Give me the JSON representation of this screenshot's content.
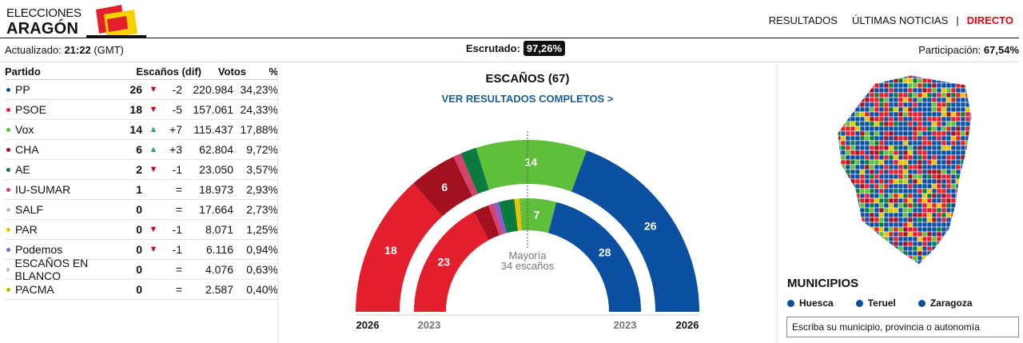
{
  "header": {
    "logo_top": "ELECCIONES",
    "logo_bottom": "ARAGÓN",
    "nav": [
      "RESULTADOS",
      "ÚLTIMAS NOTICIAS",
      "|",
      "DIRECTO"
    ]
  },
  "status": {
    "updated_label": "Actualizado:",
    "updated_time": "21:22",
    "updated_tz": "(GMT)",
    "counted_label": "Escrutado:",
    "counted_value": "97,26%",
    "turnout_label": "Participación:",
    "turnout_value": "67,54%"
  },
  "table": {
    "headers": [
      "Partido",
      "Escaños (dif)",
      "Votos",
      "%"
    ],
    "rows": [
      {
        "party": "PP",
        "color": "#0b4fa0",
        "seats": "26",
        "trend": "down",
        "diff": "-2",
        "votes": "220.984",
        "pct": "34,23%"
      },
      {
        "party": "PSOE",
        "color": "#e31e2d",
        "seats": "18",
        "trend": "down",
        "diff": "-5",
        "votes": "157.061",
        "pct": "24,33%"
      },
      {
        "party": "Vox",
        "color": "#5fbe3a",
        "seats": "14",
        "trend": "up",
        "diff": "+7",
        "votes": "115.437",
        "pct": "17,88%"
      },
      {
        "party": "CHA",
        "color": "#a3101f",
        "seats": "6",
        "trend": "up",
        "diff": "+3",
        "votes": "62.804",
        "pct": "9,72%"
      },
      {
        "party": "AE",
        "color": "#0a7a3e",
        "seats": "2",
        "trend": "down",
        "diff": "-1",
        "votes": "23.050",
        "pct": "3,57%"
      },
      {
        "party": "IU-SUMAR",
        "color": "#d4436b",
        "seats": "1",
        "trend": "",
        "diff": "=",
        "votes": "18.973",
        "pct": "2,93%"
      },
      {
        "party": "SALF",
        "color": "#bdbdbd",
        "seats": "0",
        "trend": "",
        "diff": "=",
        "votes": "17.664",
        "pct": "2,73%"
      },
      {
        "party": "PAR",
        "color": "#e8c400",
        "seats": "0",
        "trend": "down",
        "diff": "-1",
        "votes": "8.071",
        "pct": "1,25%"
      },
      {
        "party": "Podemos",
        "color": "#8e5bd1",
        "seats": "0",
        "trend": "down",
        "diff": "-1",
        "votes": "6.116",
        "pct": "0,94%"
      },
      {
        "party": "ESCAÑOS EN BLANCO",
        "color": "#bdbdbd",
        "seats": "0",
        "trend": "",
        "diff": "=",
        "votes": "4.076",
        "pct": "0,63%"
      },
      {
        "party": "PACMA",
        "color": "#9ac400",
        "seats": "0",
        "trend": "",
        "diff": "=",
        "votes": "2.587",
        "pct": "0,40%"
      }
    ]
  },
  "chart": {
    "title": "ESCAÑOS (67)",
    "link": "VER RESULTADOS COMPLETOS >",
    "majority_line1": "Mayoría",
    "majority_line2": "34 escaños",
    "year_now": "2026",
    "year_prev": "2023",
    "outer_seats": [
      {
        "party": "PSOE",
        "seats": 18,
        "color": "#e31e2d",
        "label": "18"
      },
      {
        "party": "CHA",
        "seats": 6,
        "color": "#a3101f",
        "label": "6"
      },
      {
        "party": "IU-SUMAR",
        "seats": 1,
        "color": "#d4436b",
        "label": ""
      },
      {
        "party": "AE",
        "seats": 2,
        "color": "#0a7a3e",
        "label": ""
      },
      {
        "party": "Vox",
        "seats": 14,
        "color": "#5fbe3a",
        "label": "14"
      },
      {
        "party": "PP",
        "seats": 26,
        "color": "#0b4fa0",
        "label": "26"
      }
    ],
    "inner_seats": [
      {
        "party": "PSOE",
        "seats": 23,
        "color": "#e31e2d",
        "label": "23"
      },
      {
        "party": "CHA",
        "seats": 3,
        "color": "#a3101f",
        "label": ""
      },
      {
        "party": "IU-SUMAR",
        "seats": 1,
        "color": "#d4436b",
        "label": ""
      },
      {
        "party": "Podemos",
        "seats": 1,
        "color": "#8e5bd1",
        "label": ""
      },
      {
        "party": "AE",
        "seats": 3,
        "color": "#0a7a3e",
        "label": ""
      },
      {
        "party": "PAR",
        "seats": 1,
        "color": "#e8c400",
        "label": ""
      },
      {
        "party": "Vox",
        "seats": 7,
        "color": "#5fbe3a",
        "label": "7"
      },
      {
        "party": "PP",
        "seats": 28,
        "color": "#0b4fa0",
        "label": "28"
      }
    ]
  },
  "municipios": {
    "title": "MUNICIPIOS",
    "provinces": [
      "Huesca",
      "Teruel",
      "Zaragoza"
    ],
    "search_placeholder": "Escriba su municipio, provincia o autonomía"
  }
}
